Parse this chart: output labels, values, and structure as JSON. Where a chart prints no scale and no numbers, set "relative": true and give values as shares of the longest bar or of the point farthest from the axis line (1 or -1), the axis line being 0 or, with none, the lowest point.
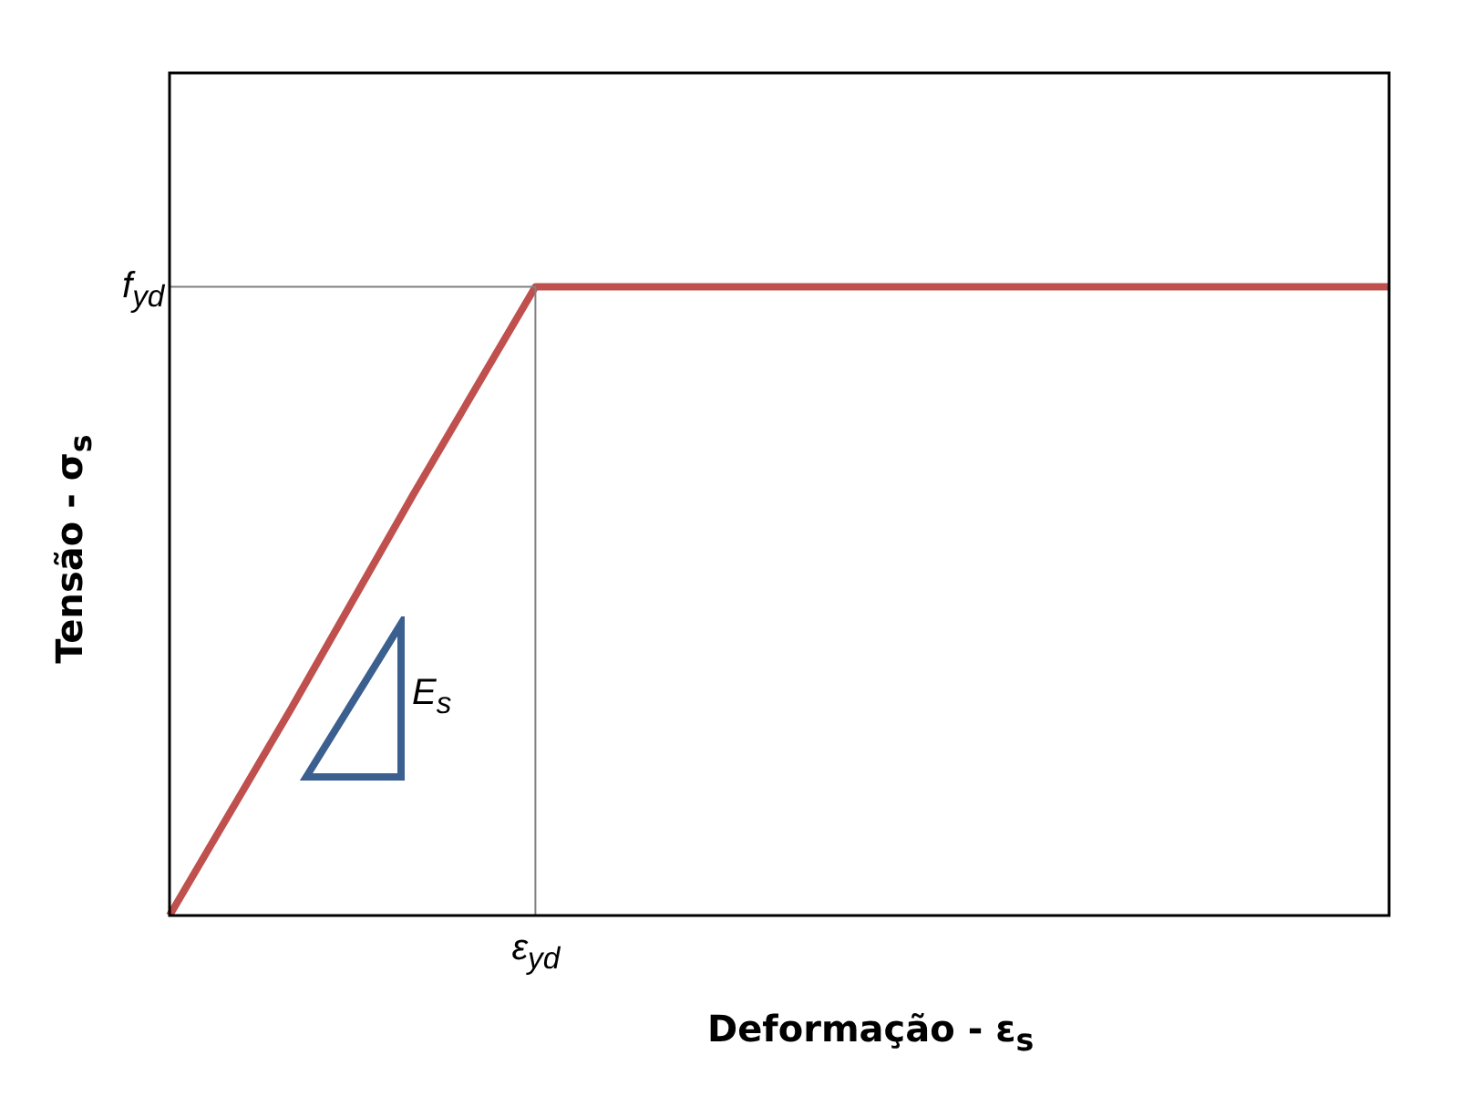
{
  "chart_data": {
    "type": "line",
    "relative": true,
    "xlabel": "Deformação - ε$_{s}$",
    "ylabel": "Tensão - σ$_{s}$",
    "categories": [
      null,
      null,
      null,
      null,
      null,
      null,
      null,
      null,
      null,
      null,
      null
    ],
    "series": [
      {
        "color": "#c0504d",
        "values": [
          0,
          0.33,
          0.67,
          1,
          1,
          1,
          1,
          1,
          1,
          1,
          1
        ]
      }
    ],
    "ref_lines": [
      {
        "axis": "y",
        "value": 1,
        "label": "f$_{yd}$",
        "color": "#808080"
      }
    ],
    "annotations": [
      "E$_{s}$",
      "ε$_{yd}$"
    ],
    "legend": false,
    "marker": "none",
    "line_style": "solid"
  }
}
